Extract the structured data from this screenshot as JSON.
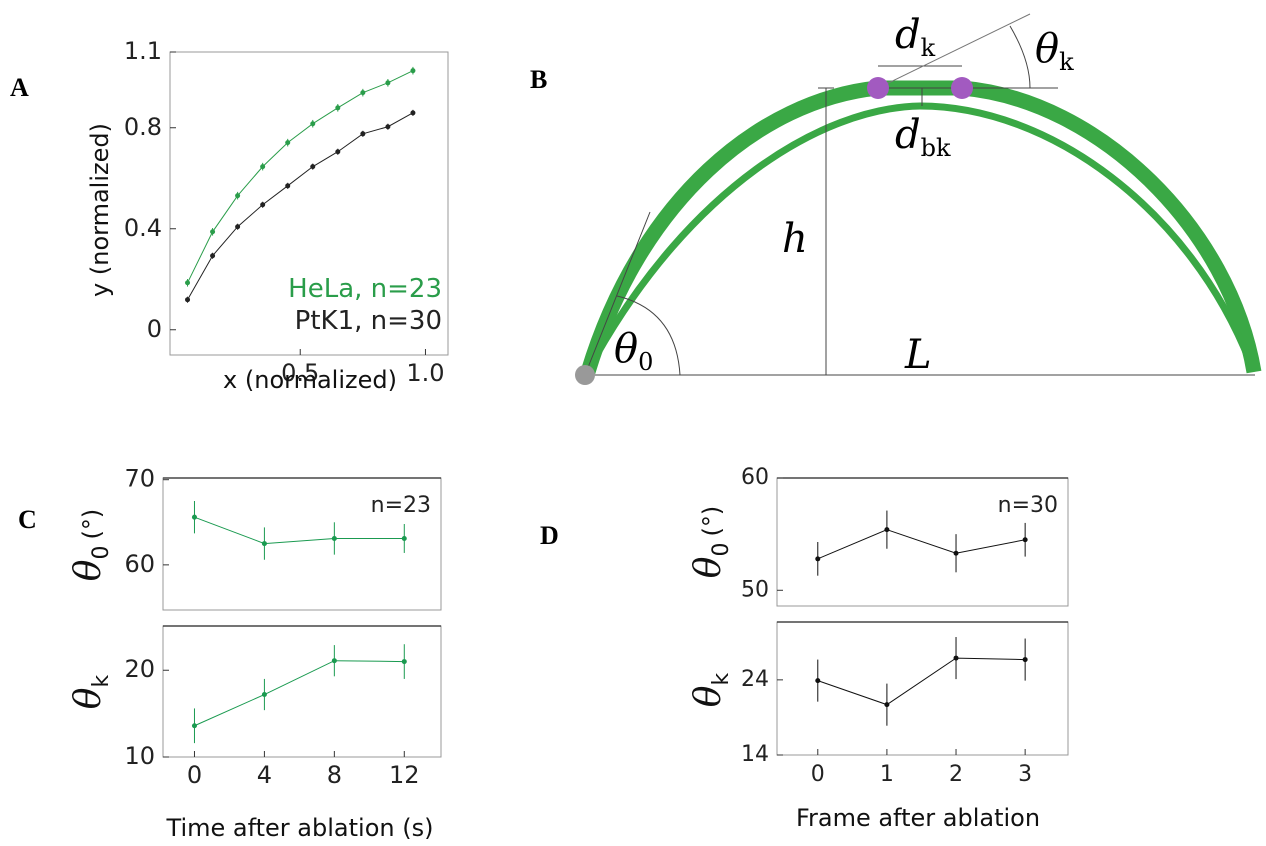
{
  "panels": [
    "A",
    "B",
    "C",
    "D"
  ],
  "diagram": {
    "dk": {
      "main": "d",
      "sub": "k"
    },
    "thetak": {
      "main": "θ",
      "sub": "k"
    },
    "dbk": {
      "main": "d",
      "sub": "bk"
    },
    "h": "h",
    "theta0": {
      "main": "θ",
      "sub": "0"
    },
    "L": "L"
  },
  "chart_data": [
    {
      "type": "line",
      "xlabel": "x (normalized)",
      "ylabel": {
        "main": "y (normalized)"
      },
      "xlim": [
        -0.02,
        1.09
      ],
      "ylim": [
        -0.1,
        1.1
      ],
      "xticks": [
        {
          "value": 0.5,
          "label": "0.5"
        },
        {
          "value": 1,
          "label": "1.0"
        }
      ],
      "yticks": [
        0,
        0.4,
        0.8,
        1.1
      ],
      "x": [
        0.05,
        0.15,
        0.25,
        0.35,
        0.45,
        0.55,
        0.65,
        0.75,
        0.85,
        0.95
      ],
      "series": [
        {
          "name": "HeLa, n=23",
          "color": "#2a9d4a",
          "values": [
            0.186,
            0.388,
            0.531,
            0.646,
            0.741,
            0.816,
            0.879,
            0.939,
            0.978,
            1.026
          ],
          "errors": [
            0.015,
            0.015,
            0.015,
            0.015,
            0.015,
            0.015,
            0.015,
            0.015,
            0.015,
            0.015
          ]
        },
        {
          "name": "PtK1, n=30",
          "color": "#222222",
          "values": [
            0.119,
            0.293,
            0.408,
            0.495,
            0.57,
            0.646,
            0.705,
            0.776,
            0.804,
            0.859
          ],
          "errors": [
            0.012,
            0.012,
            0.012,
            0.012,
            0.012,
            0.012,
            0.012,
            0.012,
            0.012,
            0.012
          ]
        }
      ]
    },
    {
      "type": "line",
      "ylabel": {
        "main": "θ",
        "sub": "0",
        "unit": "(°)"
      },
      "annotation": "n=23",
      "xlim": [
        -1.8,
        14.1
      ],
      "ylim": [
        54.7,
        70.2
      ],
      "yticks": [
        60,
        70
      ],
      "x": [
        0,
        4,
        8,
        12
      ],
      "series": [
        {
          "color": "#1a9a50",
          "values": [
            65.6,
            62.5,
            63.1,
            63.1
          ],
          "errors": [
            1.9,
            1.9,
            1.9,
            1.7
          ]
        }
      ]
    },
    {
      "type": "line",
      "ylabel": {
        "main": "θ",
        "sub": "k"
      },
      "xlabel": "Time after ablation (s)",
      "xlim": [
        -1.8,
        14.1
      ],
      "ylim": [
        10,
        25.1
      ],
      "yticks": [
        10,
        20
      ],
      "xticks": [
        0,
        4,
        8,
        12
      ],
      "x": [
        0,
        4,
        8,
        12
      ],
      "series": [
        {
          "color": "#1a9a50",
          "values": [
            13.6,
            17.2,
            21.1,
            21.0
          ],
          "errors": [
            2.0,
            1.8,
            1.8,
            2.0
          ]
        }
      ]
    },
    {
      "type": "line",
      "ylabel": {
        "main": "θ",
        "sub": "0",
        "unit": "(°)"
      },
      "annotation": "n=30",
      "xlim": [
        -0.59,
        3.62
      ],
      "ylim": [
        48.6,
        60
      ],
      "yticks": [
        50,
        60
      ],
      "x": [
        0,
        1,
        2,
        3
      ],
      "series": [
        {
          "color": "#111111",
          "values": [
            52.8,
            55.4,
            53.3,
            54.5
          ],
          "errors": [
            1.5,
            1.7,
            1.7,
            1.5
          ]
        }
      ]
    },
    {
      "type": "line",
      "ylabel": {
        "main": "θ",
        "sub": "k"
      },
      "xlabel": "Frame after ablation",
      "xlim": [
        -0.59,
        3.62
      ],
      "ylim": [
        14,
        31.7
      ],
      "yticks": [
        14,
        24
      ],
      "xticks": [
        0,
        1,
        2,
        3
      ],
      "x": [
        0,
        1,
        2,
        3
      ],
      "series": [
        {
          "color": "#111111",
          "values": [
            23.9,
            20.7,
            26.9,
            26.7
          ],
          "errors": [
            2.8,
            2.8,
            2.8,
            2.8
          ]
        }
      ]
    }
  ]
}
